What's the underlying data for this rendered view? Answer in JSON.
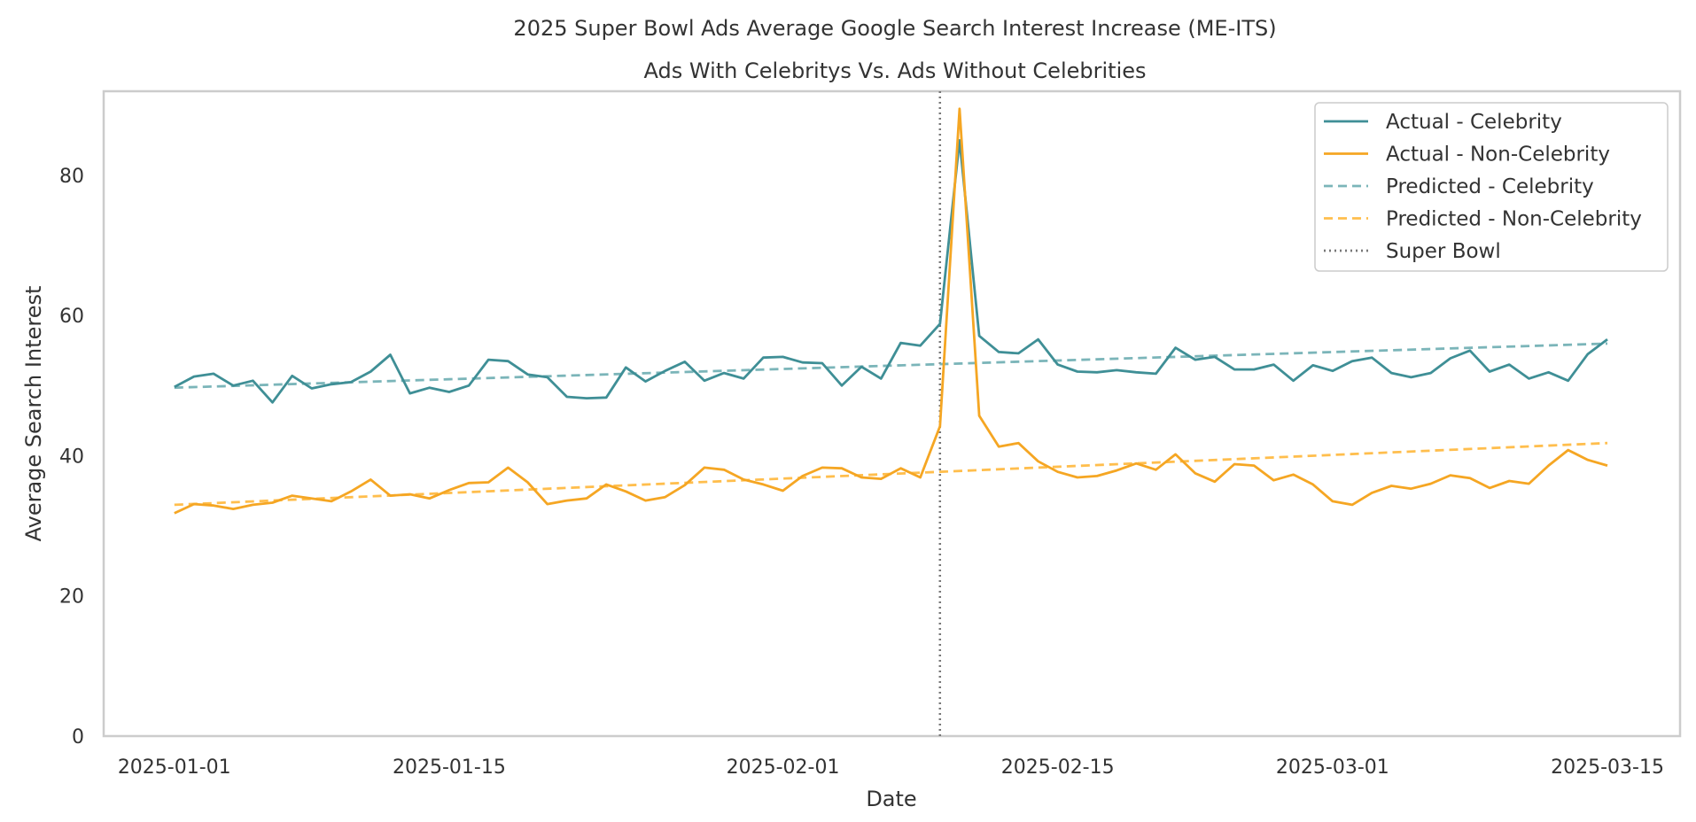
{
  "chart_data": {
    "type": "line",
    "title": "2025 Super Bowl Ads Average Google Search Interest Increase (ME-ITS)",
    "subtitle": "Ads With Celebritys Vs. Ads Without Celebrities",
    "xlabel": "Date",
    "ylabel": "Average Search Interest",
    "x_start": "2025-01-01",
    "x_end": "2025-03-15",
    "x_ticks": [
      "2025-01-01",
      "2025-01-15",
      "2025-02-01",
      "2025-02-15",
      "2025-03-01",
      "2025-03-15"
    ],
    "x_tick_days": [
      0,
      14,
      31,
      45,
      59,
      73
    ],
    "xlim_days": [
      -3.6,
      76.7
    ],
    "ylim": [
      0,
      92
    ],
    "y_ticks": [
      0,
      20,
      40,
      60,
      80
    ],
    "grid": false,
    "legend_position": "top-right",
    "event": {
      "name": "Super Bowl",
      "date": "2025-02-09",
      "day": 39,
      "color": "#777777"
    },
    "series": [
      {
        "name": "Actual - Celebrity",
        "style": "solid",
        "color": "#3f8f96",
        "values": [
          49.8,
          51.3,
          51.7,
          50.0,
          50.7,
          47.6,
          51.4,
          49.6,
          50.2,
          50.5,
          52.0,
          54.4,
          48.9,
          49.7,
          49.1,
          50.0,
          53.7,
          53.5,
          51.6,
          51.2,
          48.4,
          48.2,
          48.3,
          52.6,
          50.6,
          52.1,
          53.4,
          50.7,
          51.8,
          51.0,
          54.0,
          54.1,
          53.3,
          53.2,
          50.0,
          52.7,
          51.0,
          56.1,
          55.7,
          58.8,
          85.0,
          57.1,
          54.8,
          54.6,
          56.6,
          53.0,
          52.0,
          51.9,
          52.2,
          51.9,
          51.7,
          55.4,
          53.7,
          54.1,
          52.3,
          52.3,
          53.0,
          50.7,
          52.9,
          52.1,
          53.5,
          54.0,
          51.8,
          51.2,
          51.8,
          53.9,
          55.0,
          52.0,
          53.0,
          51.0,
          51.9,
          50.7,
          54.5,
          56.6
        ]
      },
      {
        "name": "Actual - Non-Celebrity",
        "style": "solid",
        "color": "#f5a623",
        "values": [
          31.8,
          33.1,
          32.9,
          32.4,
          33.0,
          33.3,
          34.3,
          33.9,
          33.5,
          34.9,
          36.6,
          34.3,
          34.5,
          33.9,
          35.1,
          36.1,
          36.2,
          38.3,
          36.2,
          33.1,
          33.6,
          33.9,
          35.9,
          34.9,
          33.6,
          34.1,
          35.8,
          38.3,
          38.0,
          36.6,
          35.9,
          35.0,
          37.1,
          38.3,
          38.2,
          36.9,
          36.7,
          38.2,
          36.9,
          44.2,
          89.5,
          45.7,
          41.3,
          41.8,
          39.2,
          37.7,
          36.9,
          37.1,
          37.9,
          38.9,
          38.0,
          40.2,
          37.5,
          36.3,
          38.8,
          38.6,
          36.5,
          37.3,
          35.9,
          33.5,
          33.0,
          34.7,
          35.7,
          35.3,
          36.0,
          37.2,
          36.8,
          35.4,
          36.4,
          36.0,
          38.6,
          40.8,
          39.4,
          38.6
        ]
      },
      {
        "name": "Predicted - Celebrity",
        "style": "dashed",
        "color": "#7bb5b9",
        "values_start": 49.7,
        "values_end": 56.0
      },
      {
        "name": "Predicted - Non-Celebrity",
        "style": "dashed",
        "color": "#ffbe4d",
        "values_start": 33.0,
        "values_end": 41.8
      }
    ]
  }
}
